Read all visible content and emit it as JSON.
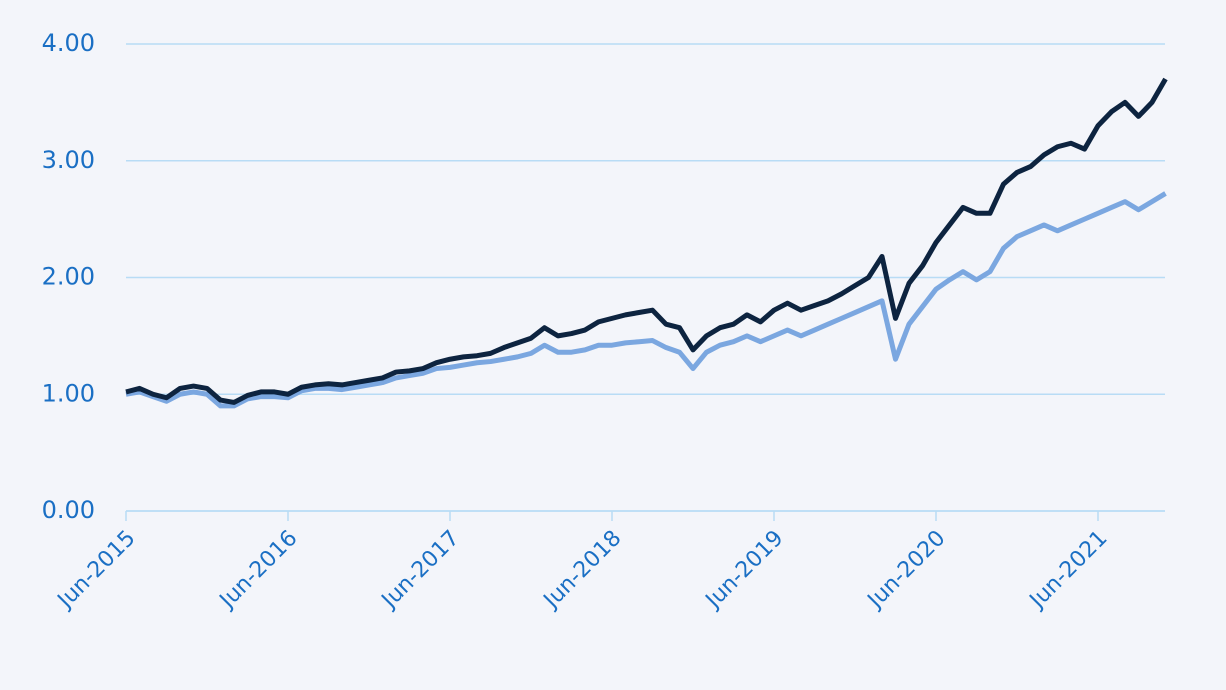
{
  "chart_data": {
    "type": "line",
    "x": [
      "Jun-2015",
      "Jul-2015",
      "Aug-2015",
      "Sep-2015",
      "Oct-2015",
      "Nov-2015",
      "Dec-2015",
      "Jan-2016",
      "Feb-2016",
      "Mar-2016",
      "Apr-2016",
      "May-2016",
      "Jun-2016",
      "Jul-2016",
      "Aug-2016",
      "Sep-2016",
      "Oct-2016",
      "Nov-2016",
      "Dec-2016",
      "Jan-2017",
      "Feb-2017",
      "Mar-2017",
      "Apr-2017",
      "May-2017",
      "Jun-2017",
      "Jul-2017",
      "Aug-2017",
      "Sep-2017",
      "Oct-2017",
      "Nov-2017",
      "Dec-2017",
      "Jan-2018",
      "Feb-2018",
      "Mar-2018",
      "Apr-2018",
      "May-2018",
      "Jun-2018",
      "Jul-2018",
      "Aug-2018",
      "Sep-2018",
      "Oct-2018",
      "Nov-2018",
      "Dec-2018",
      "Jan-2019",
      "Feb-2019",
      "Mar-2019",
      "Apr-2019",
      "May-2019",
      "Jun-2019",
      "Jul-2019",
      "Aug-2019",
      "Sep-2019",
      "Oct-2019",
      "Nov-2019",
      "Dec-2019",
      "Jan-2020",
      "Feb-2020",
      "Mar-2020",
      "Apr-2020",
      "May-2020",
      "Jun-2020",
      "Jul-2020",
      "Aug-2020",
      "Sep-2020",
      "Oct-2020",
      "Nov-2020",
      "Dec-2020",
      "Jan-2021",
      "Feb-2021",
      "Mar-2021",
      "Apr-2021",
      "May-2021",
      "Jun-2021",
      "Jul-2021",
      "Aug-2021",
      "Sep-2021",
      "Oct-2021",
      "Nov-2021"
    ],
    "xticks": [
      "Jun-2015",
      "Jun-2016",
      "Jun-2017",
      "Jun-2018",
      "Jun-2019",
      "Jun-2020",
      "Jun-2021"
    ],
    "series": [
      {
        "color": "#7ba7e0",
        "values": [
          1.0,
          1.02,
          0.98,
          0.94,
          1.0,
          1.02,
          1.0,
          0.9,
          0.9,
          0.96,
          0.98,
          0.98,
          0.97,
          1.03,
          1.05,
          1.05,
          1.04,
          1.06,
          1.08,
          1.1,
          1.14,
          1.16,
          1.18,
          1.22,
          1.23,
          1.25,
          1.27,
          1.28,
          1.3,
          1.32,
          1.35,
          1.42,
          1.36,
          1.36,
          1.38,
          1.42,
          1.42,
          1.44,
          1.45,
          1.46,
          1.4,
          1.36,
          1.22,
          1.36,
          1.42,
          1.45,
          1.5,
          1.45,
          1.5,
          1.55,
          1.5,
          1.55,
          1.6,
          1.65,
          1.7,
          1.75,
          1.8,
          1.3,
          1.6,
          1.75,
          1.9,
          1.98,
          2.05,
          1.98,
          2.05,
          2.25,
          2.35,
          2.4,
          2.45,
          2.4,
          2.45,
          2.5,
          2.55,
          2.6,
          2.65,
          2.58,
          2.65,
          2.72
        ]
      },
      {
        "color": "#0d2440",
        "values": [
          1.02,
          1.05,
          1.0,
          0.97,
          1.05,
          1.07,
          1.05,
          0.95,
          0.93,
          0.99,
          1.02,
          1.02,
          1.0,
          1.06,
          1.08,
          1.09,
          1.08,
          1.1,
          1.12,
          1.14,
          1.19,
          1.2,
          1.22,
          1.27,
          1.3,
          1.32,
          1.33,
          1.35,
          1.4,
          1.44,
          1.48,
          1.57,
          1.5,
          1.52,
          1.55,
          1.62,
          1.65,
          1.68,
          1.7,
          1.72,
          1.6,
          1.57,
          1.38,
          1.5,
          1.57,
          1.6,
          1.68,
          1.62,
          1.72,
          1.78,
          1.72,
          1.76,
          1.8,
          1.86,
          1.93,
          2.0,
          2.18,
          1.65,
          1.95,
          2.1,
          2.3,
          2.45,
          2.6,
          2.55,
          2.55,
          2.8,
          2.9,
          2.95,
          3.05,
          3.12,
          3.15,
          3.1,
          3.3,
          3.42,
          3.5,
          3.38,
          3.5,
          3.7
        ]
      }
    ],
    "ylim": [
      0,
      4
    ],
    "yticks": [
      {
        "value": 0,
        "label": "0.00"
      },
      {
        "value": 1,
        "label": "1.00"
      },
      {
        "value": 2,
        "label": "2.00"
      },
      {
        "value": 3,
        "label": "3.00"
      },
      {
        "value": 4,
        "label": "4.00"
      }
    ],
    "grid": true
  }
}
